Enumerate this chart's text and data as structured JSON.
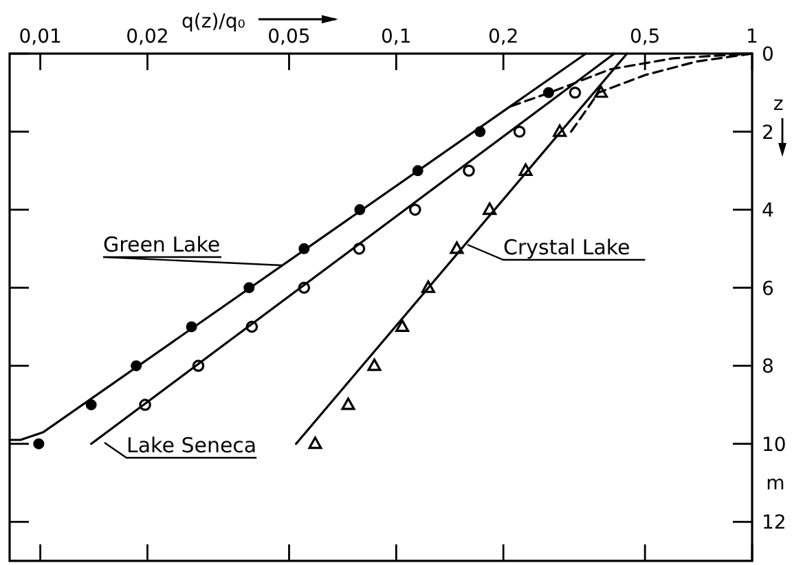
{
  "chart_data": {
    "type": "scatter",
    "xlabel": "q(z)/q₀",
    "ylabel": "z",
    "annotations": [
      "m"
    ],
    "log": "x",
    "grid": false,
    "xlim": [
      0.0082,
      1
    ],
    "ylim": [
      13,
      0
    ],
    "xticks": [
      {
        "value": 0.01,
        "label": "0,01"
      },
      {
        "value": 0.02,
        "label": "0,02"
      },
      {
        "value": 0.05,
        "label": "0,05"
      },
      {
        "value": 0.1,
        "label": "0,1"
      },
      {
        "value": 0.2,
        "label": "0,2"
      },
      {
        "value": 0.5,
        "label": "0,5"
      },
      1
    ],
    "yticks": [
      0,
      2,
      4,
      6,
      8,
      10,
      12
    ],
    "series": [
      {
        "name": "Green Lake",
        "marker": "circle",
        "color": "#000000",
        "x": [
          0.268,
          0.172,
          0.115,
          0.079,
          0.0551,
          0.0386,
          0.0266,
          0.0186,
          0.0139,
          0.0099
        ],
        "values": [
          1,
          2,
          3,
          4,
          5,
          6,
          7,
          8,
          9,
          10
        ]
      },
      {
        "name": "Lake Seneca",
        "marker": "circle",
        "color": "#000000",
        "x": [
          0.318,
          0.222,
          0.16,
          0.113,
          0.0787,
          0.0551,
          0.0393,
          0.0278,
          0.0197
        ],
        "values": [
          1,
          2,
          3,
          4,
          5,
          6,
          7,
          8,
          9
        ]
      },
      {
        "name": "Crystal Lake",
        "marker": "triangle",
        "color": "#000000",
        "x": [
          0.376,
          0.288,
          0.231,
          0.183,
          0.148,
          0.123,
          0.104,
          0.0868,
          0.0733,
          0.0592
        ],
        "values": [
          1,
          2,
          3,
          4,
          5,
          6,
          7,
          8,
          9,
          10
        ]
      },
      {
        "type": "line",
        "marker": "none",
        "line_style": "solid",
        "color": "#000000",
        "x": [
          0.341,
          0.0102,
          0.0088,
          0.0082
        ],
        "values": [
          0,
          9.7,
          9.9,
          9.9
        ]
      },
      {
        "type": "line",
        "marker": "none",
        "line_style": "solid",
        "color": "#000000",
        "x": [
          0.41,
          0.0139
        ],
        "values": [
          0,
          10
        ]
      },
      {
        "type": "line",
        "marker": "none",
        "line_style": "solid",
        "color": "#000000",
        "x": [
          0.445,
          0.0523
        ],
        "values": [
          0,
          10
        ]
      },
      {
        "type": "line",
        "marker": "none",
        "line_style": "dashed",
        "color": "#000000",
        "x": [
          0.21,
          0.27,
          0.4,
          0.6,
          1
        ],
        "values": [
          1.35,
          1,
          0.4,
          0.12,
          0
        ]
      },
      {
        "type": "line",
        "marker": "none",
        "line_style": "dashed",
        "color": "#000000",
        "x": [
          0.31,
          0.37,
          0.5,
          0.7,
          1
        ],
        "values": [
          2,
          1,
          0.55,
          0.2,
          0
        ]
      }
    ]
  }
}
